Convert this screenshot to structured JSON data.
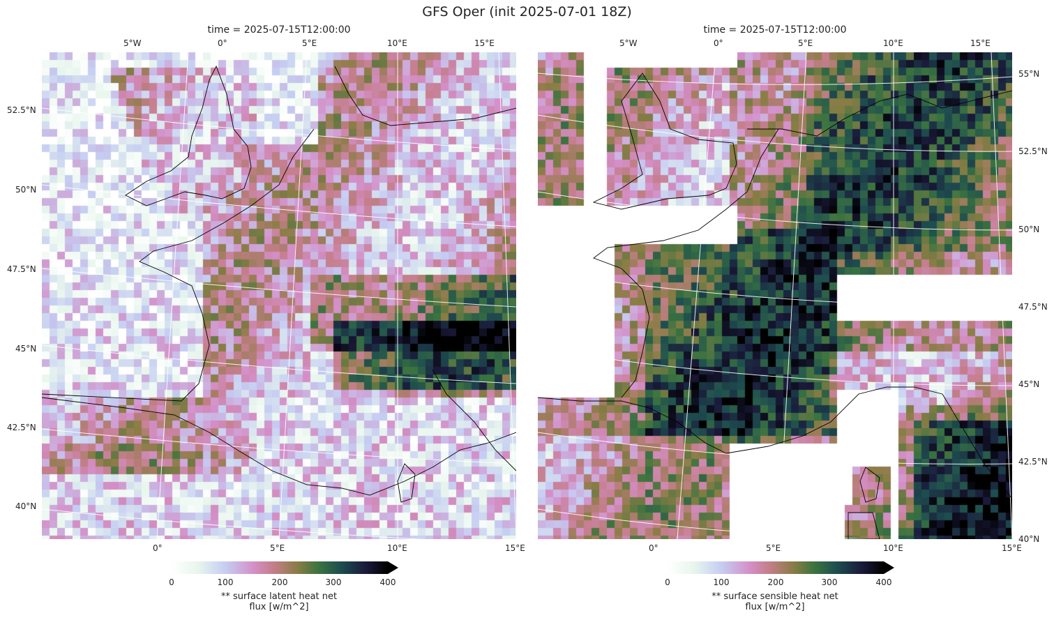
{
  "figure": {
    "suptitle": "GFS Oper (init 2025-07-01 18Z)"
  },
  "colormap": {
    "name": "cubehelix_r",
    "stops": [
      "#ffffff",
      "#e8f6ee",
      "#c5cdf2",
      "#d48fc8",
      "#c47e8a",
      "#8a7d45",
      "#3b7340",
      "#1e4e4f",
      "#1a1a3a",
      "#000000"
    ]
  },
  "panels": [
    {
      "title": "time = 2025-07-15T12:00:00",
      "top_lon_ticks": [
        "5°W",
        "0°",
        "5°E",
        "10°E",
        "15°E"
      ],
      "bottom_lon_ticks": [
        "0°",
        "5°E",
        "10°E",
        "15°E"
      ],
      "lat_ticks": [
        "52.5°N",
        "50°N",
        "47.5°N",
        "45°N",
        "42.5°N",
        "40°N"
      ],
      "lat_side": "left",
      "colorbar": {
        "ticks": [
          "0",
          "100",
          "200",
          "300",
          "400"
        ],
        "vmin": 0,
        "vmax": 400,
        "extend": "max",
        "label_line1": "** surface latent heat net",
        "label_line2": "flux [w/m^2]"
      }
    },
    {
      "title": "time = 2025-07-15T12:00:00",
      "top_lon_ticks": [
        "5°W",
        "0°",
        "5°E",
        "10°E",
        "15°E"
      ],
      "bottom_lon_ticks": [
        "0°",
        "5°E",
        "10°E",
        "15°E"
      ],
      "lat_ticks": [
        "55°N",
        "52.5°N",
        "50°N",
        "47.5°N",
        "45°N",
        "42.5°N",
        "40°N"
      ],
      "lat_side": "right",
      "colorbar": {
        "ticks": [
          "0",
          "100",
          "200",
          "300",
          "400"
        ],
        "vmin": 0,
        "vmax": 400,
        "extend": "max",
        "label_line1": "** surface sensible heat net",
        "label_line2": "flux [w/m^2]"
      }
    }
  ]
}
